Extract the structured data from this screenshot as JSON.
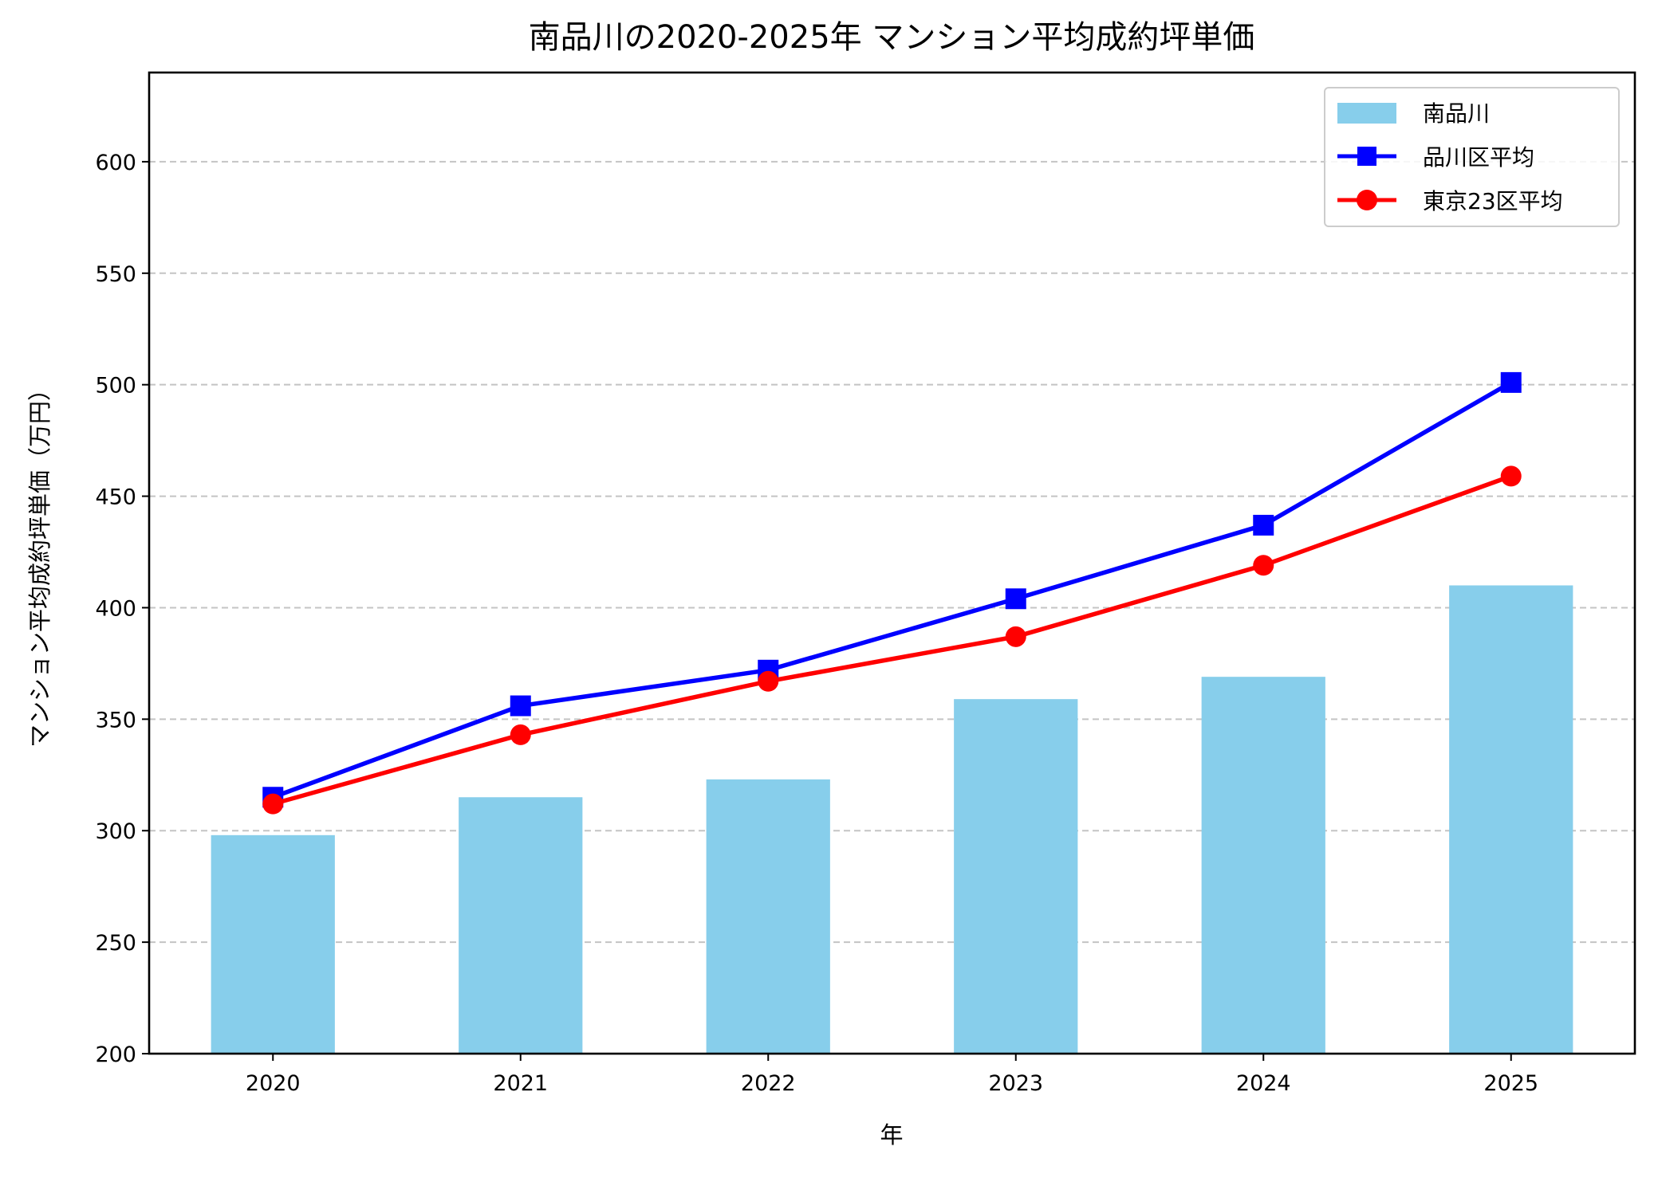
{
  "chart_data": {
    "type": "bar+line",
    "title": "南品川の2020-2025年 マンション平均成約坪単価",
    "xlabel": "年",
    "ylabel": "マンション平均成約坪単価（万円）",
    "categories": [
      "2020",
      "2021",
      "2022",
      "2023",
      "2024",
      "2025"
    ],
    "ylim": [
      200,
      640
    ],
    "yticks": [
      200,
      250,
      300,
      350,
      400,
      450,
      500,
      550,
      600
    ],
    "grid": "y-dashed",
    "legend_position": "top-right",
    "series": [
      {
        "name": "南品川",
        "kind": "bar",
        "color": "#87CEEB",
        "values": [
          298,
          315,
          323,
          359,
          369,
          410
        ]
      },
      {
        "name": "品川区平均",
        "kind": "line",
        "marker": "square",
        "color": "#0000FF",
        "values": [
          315,
          356,
          372,
          404,
          437,
          501
        ]
      },
      {
        "name": "東京23区平均",
        "kind": "line",
        "marker": "circle",
        "color": "#FF0000",
        "values": [
          312,
          343,
          367,
          387,
          419,
          459
        ]
      }
    ]
  }
}
